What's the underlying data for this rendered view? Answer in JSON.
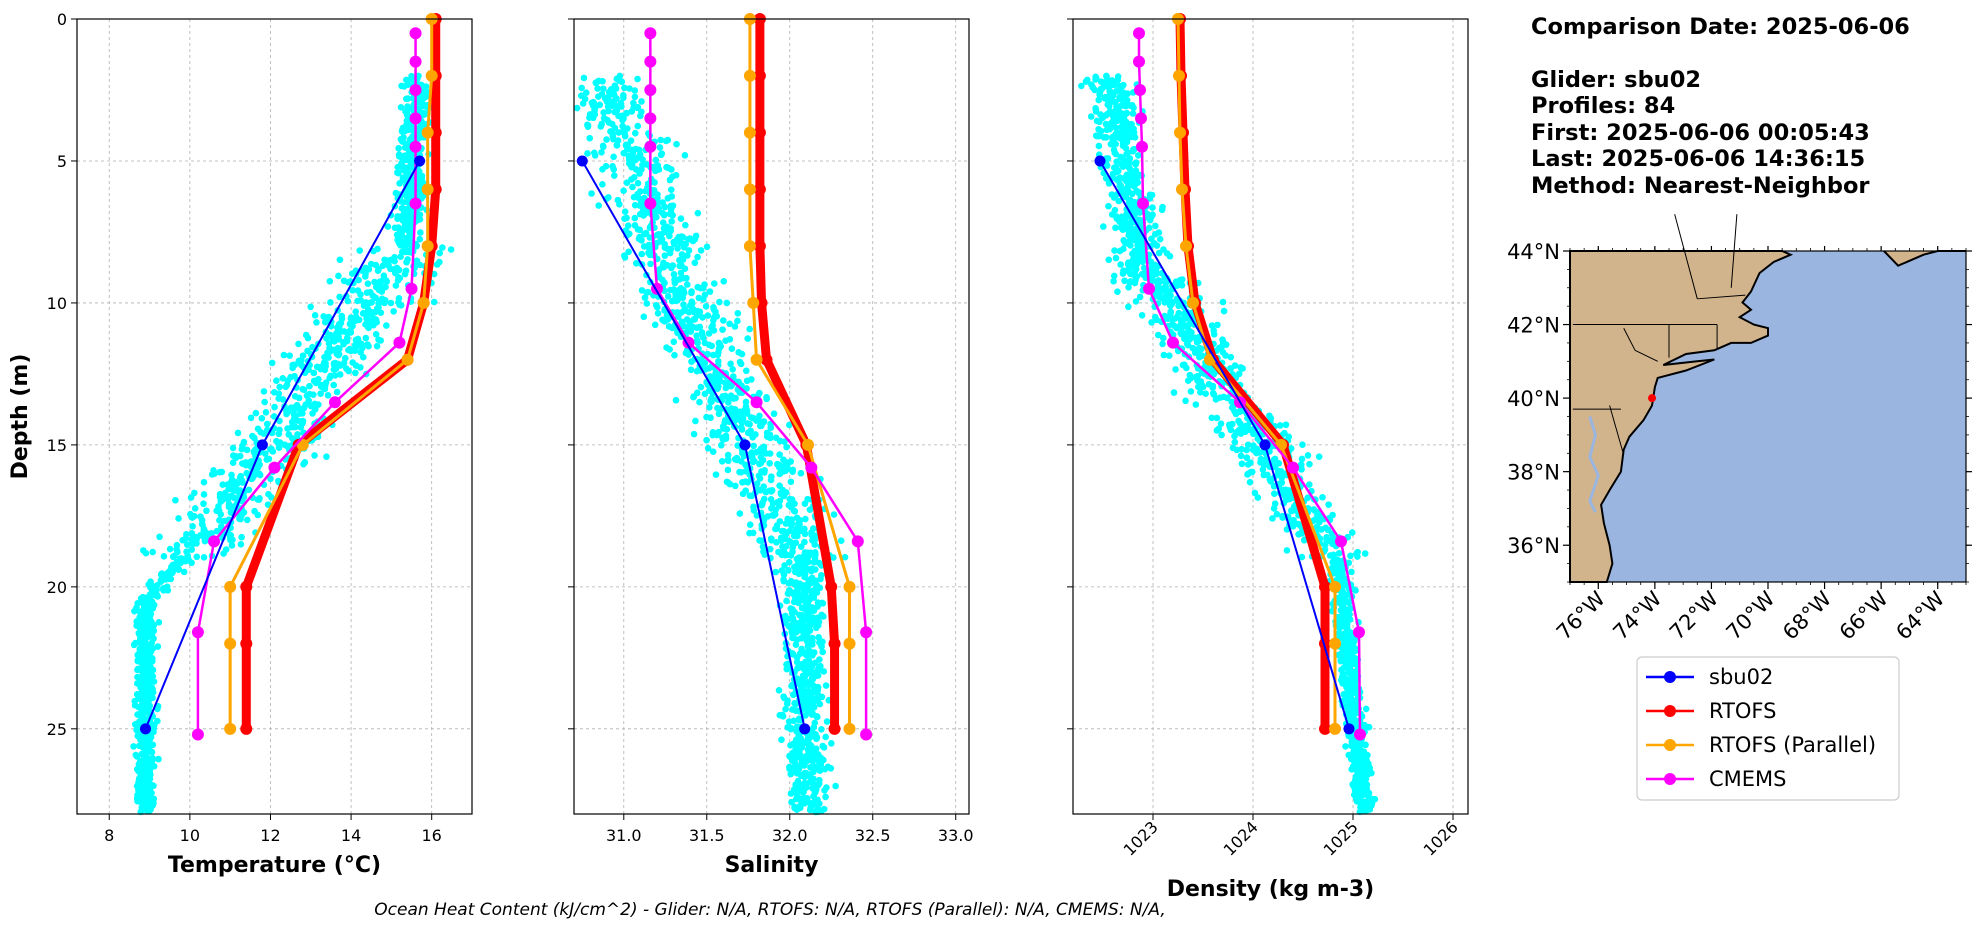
{
  "info": {
    "comparison_date": "Comparison Date: 2025-06-06",
    "glider": "Glider: sbu02",
    "profiles": "Profiles: 84",
    "first": "First: 2025-06-06 00:05:43",
    "last": "Last: 2025-06-06 14:36:15",
    "method": "Method: Nearest-Neighbor"
  },
  "footer": "Ocean Heat Content (kJ/cm^2) - Glider: N/A,  RTOFS: N/A,  RTOFS (Parallel): N/A,  CMEMS: N/A,",
  "colors": {
    "glider": "#0000ff",
    "rtofs": "#ff0000",
    "rtofs_parallel": "#ffa500",
    "cmems": "#ff00ff",
    "scatter": "#00ffff",
    "land": "#d2b48c",
    "ocean": "#9ab6e0"
  },
  "legend": {
    "items": [
      {
        "label": "sbu02",
        "color": "#0000ff"
      },
      {
        "label": "RTOFS",
        "color": "#ff0000"
      },
      {
        "label": "RTOFS (Parallel)",
        "color": "#ffa500"
      },
      {
        "label": "CMEMS",
        "color": "#ff00ff"
      }
    ]
  },
  "chart_data": [
    {
      "type": "line",
      "xlabel": "Temperature (°C)",
      "ylabel": "Depth (m)",
      "xlim": [
        7.2,
        17.0
      ],
      "ylim": [
        28,
        0
      ],
      "xticks": [
        8,
        10,
        12,
        14,
        16
      ],
      "yticks": [
        0,
        5,
        10,
        15,
        20,
        25
      ],
      "grid": true,
      "series": [
        {
          "name": "sbu02",
          "x": [
            15.7,
            11.8,
            8.9
          ],
          "y": [
            5,
            15,
            25
          ]
        },
        {
          "name": "RTOFS",
          "x": [
            16.1,
            16.1,
            16.1,
            16.1,
            16.0,
            15.8,
            15.4,
            12.7,
            11.4,
            11.4,
            11.4
          ],
          "y": [
            0,
            2,
            4,
            6,
            8,
            10,
            12,
            15,
            20,
            22,
            25
          ]
        },
        {
          "name": "RTOFS (Parallel)",
          "x": [
            16.0,
            16.0,
            15.9,
            15.9,
            15.9,
            15.8,
            15.4,
            12.8,
            11.0,
            11.0,
            11.0
          ],
          "y": [
            0,
            2,
            4,
            6,
            8,
            10,
            12,
            15,
            20,
            22,
            25
          ]
        },
        {
          "name": "CMEMS",
          "x": [
            15.6,
            15.6,
            15.6,
            15.6,
            15.6,
            15.6,
            15.5,
            15.2,
            13.6,
            12.1,
            10.6,
            10.2,
            10.2
          ],
          "y": [
            0.5,
            1.5,
            2.5,
            3.5,
            4.5,
            6.5,
            9.5,
            11.4,
            13.5,
            15.8,
            18.4,
            21.6,
            25.2
          ]
        }
      ]
    },
    {
      "type": "line",
      "xlabel": "Salinity",
      "xlim": [
        30.7,
        33.08
      ],
      "ylim": [
        28,
        0
      ],
      "xticks": [
        31.0,
        31.5,
        32.0,
        32.5,
        33.0
      ],
      "yticks": [
        0,
        5,
        10,
        15,
        20,
        25
      ],
      "grid": true,
      "series": [
        {
          "name": "sbu02",
          "x": [
            30.75,
            31.73,
            32.09
          ],
          "y": [
            5,
            15,
            25
          ]
        },
        {
          "name": "RTOFS",
          "x": [
            31.82,
            31.82,
            31.82,
            31.82,
            31.82,
            31.83,
            31.86,
            32.1,
            32.25,
            32.27,
            32.27
          ],
          "y": [
            0,
            2,
            4,
            6,
            8,
            10,
            12,
            15,
            20,
            22,
            25
          ]
        },
        {
          "name": "RTOFS (Parallel)",
          "x": [
            31.76,
            31.76,
            31.76,
            31.76,
            31.76,
            31.78,
            31.8,
            32.11,
            32.36,
            32.36,
            32.36
          ],
          "y": [
            0,
            2,
            4,
            6,
            8,
            10,
            12,
            15,
            20,
            22,
            25
          ]
        },
        {
          "name": "CMEMS",
          "x": [
            31.16,
            31.16,
            31.16,
            31.16,
            31.16,
            31.16,
            31.2,
            31.39,
            31.8,
            32.13,
            32.41,
            32.46,
            32.46
          ],
          "y": [
            0.5,
            1.5,
            2.5,
            3.5,
            4.5,
            6.5,
            9.5,
            11.4,
            13.5,
            15.8,
            18.4,
            21.6,
            25.2
          ]
        }
      ]
    },
    {
      "type": "line",
      "xlabel": "Density (kg m-3)",
      "xlim": [
        1022.2,
        1026.15
      ],
      "ylim": [
        28,
        0
      ],
      "xticks": [
        1023,
        1024,
        1025,
        1026
      ],
      "yticks": [
        0,
        5,
        10,
        15,
        20,
        25
      ],
      "grid": true,
      "series": [
        {
          "name": "sbu02",
          "x": [
            1022.47,
            1024.12,
            1024.96
          ],
          "y": [
            5,
            15,
            25
          ]
        },
        {
          "name": "RTOFS",
          "x": [
            1023.27,
            1023.28,
            1023.3,
            1023.32,
            1023.35,
            1023.42,
            1023.6,
            1024.3,
            1024.72,
            1024.72,
            1024.72
          ],
          "y": [
            0,
            2,
            4,
            6,
            8,
            10,
            12,
            15,
            20,
            22,
            25
          ]
        },
        {
          "name": "RTOFS (Parallel)",
          "x": [
            1023.25,
            1023.26,
            1023.27,
            1023.29,
            1023.33,
            1023.4,
            1023.57,
            1024.28,
            1024.82,
            1024.82,
            1024.82
          ],
          "y": [
            0,
            2,
            4,
            6,
            8,
            10,
            12,
            15,
            20,
            22,
            25
          ]
        },
        {
          "name": "CMEMS",
          "x": [
            1022.86,
            1022.86,
            1022.87,
            1022.88,
            1022.89,
            1022.9,
            1022.96,
            1023.2,
            1023.87,
            1024.4,
            1024.88,
            1025.06,
            1025.07
          ],
          "y": [
            0.5,
            1.5,
            2.5,
            3.5,
            4.5,
            6.5,
            9.5,
            11.4,
            13.5,
            15.8,
            18.4,
            21.6,
            25.2
          ]
        }
      ]
    },
    {
      "type": "map",
      "lon_range": [
        -77.0,
        -63.0
      ],
      "lat_range": [
        35.0,
        44.0
      ],
      "xticks": [
        "76°W",
        "74°W",
        "72°W",
        "70°W",
        "68°W",
        "66°W",
        "64°W"
      ],
      "yticks": [
        "36°N",
        "38°N",
        "40°N",
        "42°N",
        "44°N"
      ],
      "marker": {
        "lon": -74.1,
        "lat": 40.0
      }
    }
  ]
}
